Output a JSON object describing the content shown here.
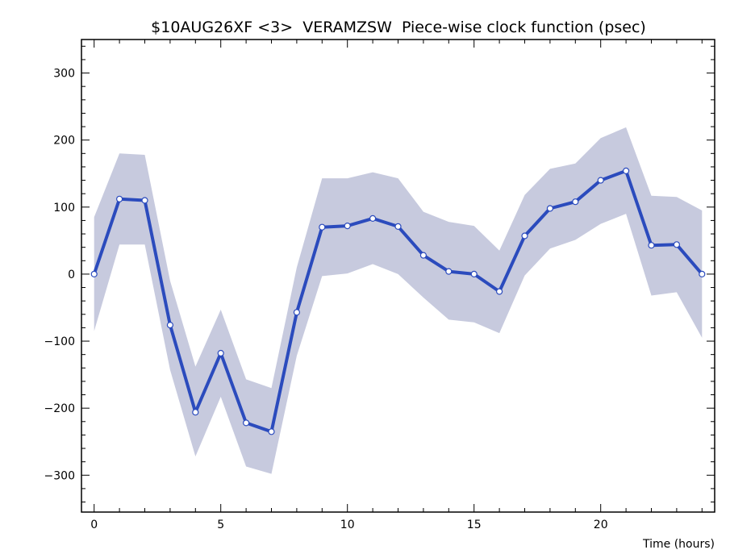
{
  "chart_data": {
    "type": "line",
    "title": "$10AUG26XF <3>  VERAMZSW  Piece-wise clock function (psec)",
    "xlabel": "Time (hours)",
    "ylabel": "",
    "xlim": [
      -0.5,
      24.5
    ],
    "ylim": [
      -355,
      350
    ],
    "x_ticks": [
      0,
      5,
      10,
      15,
      20
    ],
    "x_tick_labels": [
      "0",
      "5",
      "10",
      "15",
      "20"
    ],
    "y_ticks": [
      -300,
      -200,
      -100,
      0,
      100,
      200,
      300
    ],
    "y_tick_labels": [
      "−300",
      "−200",
      "−100",
      "0",
      "100",
      "200",
      "300"
    ],
    "x": [
      0,
      1,
      2,
      3,
      4,
      5,
      6,
      7,
      8,
      9,
      10,
      11,
      12,
      13,
      14,
      15,
      16,
      17,
      18,
      19,
      20,
      21,
      22,
      23,
      24
    ],
    "series": [
      {
        "values": [
          0,
          112,
          110,
          -76,
          -206,
          -118,
          -222,
          -235,
          -57,
          70,
          72,
          83,
          71,
          28,
          4,
          0,
          -26,
          57,
          98,
          108,
          140,
          154,
          43,
          44,
          0
        ]
      }
    ],
    "band": {
      "upper": [
        85,
        180,
        178,
        -10,
        -138,
        -53,
        -157,
        -170,
        10,
        143,
        143,
        152,
        143,
        93,
        78,
        72,
        35,
        118,
        157,
        165,
        203,
        219,
        117,
        115,
        95
      ],
      "lower": [
        -85,
        44,
        44,
        -143,
        -272,
        -183,
        -287,
        -298,
        -122,
        -3,
        1,
        15,
        0,
        -35,
        -68,
        -72,
        -88,
        -2,
        38,
        51,
        75,
        90,
        -32,
        -27,
        -95
      ]
    },
    "colors": {
      "line": "#2b4bbd",
      "band": "#c7cade",
      "marker_fill": "#ffffff"
    },
    "grid": false
  }
}
